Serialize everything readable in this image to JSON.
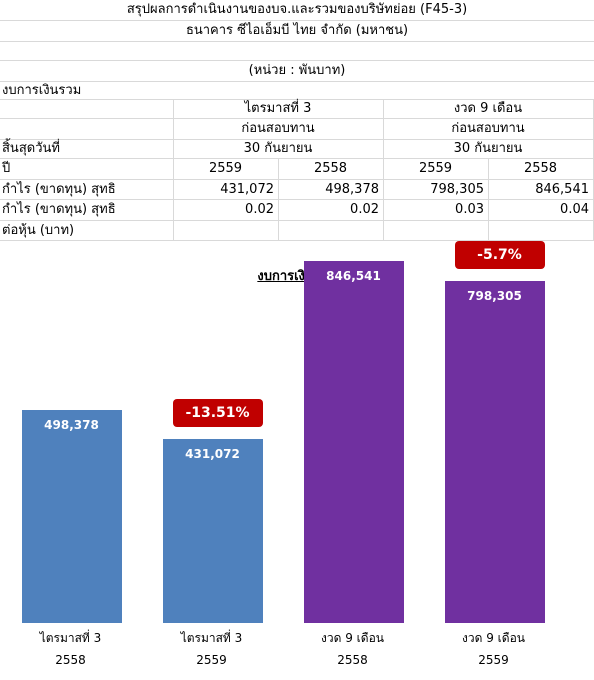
{
  "sheet": {
    "title_line1": "สรุปผลการดำเนินงานของบจ.และรวมของบริษัทย่อย (F45-3)",
    "title_line2": "ธนาคาร ซีไอเอ็มบี ไทย จำกัด (มหาชน)",
    "unit": "(หน่วย : พันบาท)",
    "section": "งบการเงินรวม",
    "period_q": "ไตรมาสที่ 3",
    "period_9m": "งวด 9 เดือน",
    "audit_q": "ก่อนสอบทาน",
    "audit_9m": "ก่อนสอบทาน",
    "ending_label": "สิ้นสุดวันที่",
    "ending_q": "30 กันยายน",
    "ending_9m": "30 กันยายน",
    "year_label": "ปี",
    "years": [
      "2559",
      "2558",
      "2559",
      "2558"
    ],
    "net_profit_label": "กำไร (ขาดทุน) สุทธิ",
    "net_profit_values": [
      "431,072",
      "498,378",
      "798,305",
      "846,541"
    ],
    "eps_label": "กำไร (ขาดทุน) สุทธิ",
    "eps_label2": "ต่อหุ้น (บาท)",
    "eps_values": [
      "0.02",
      "0.02",
      "0.03",
      "0.04"
    ]
  },
  "chart_data": {
    "type": "bar",
    "title": "งบการเงินรวม",
    "categories": [
      [
        "ไตรมาสที่ 3",
        "2558"
      ],
      [
        "ไตรมาสที่ 3",
        "2559"
      ],
      [
        "งวด 9 เดือน",
        "2558"
      ],
      [
        "งวด 9 เดือน",
        "2559"
      ]
    ],
    "values": [
      498378,
      431072,
      846541,
      798305
    ],
    "value_labels": [
      "498,378",
      "431,072",
      "846,541",
      "798,305"
    ],
    "bar_colors": [
      "#4f81bd",
      "#4f81bd",
      "#7030a0",
      "#7030a0"
    ],
    "change_labels": [
      "",
      "-13.51%",
      "",
      "-5.7%"
    ],
    "badge_color": "#c00000",
    "ylim": [
      0,
      1000000
    ],
    "grid": false
  }
}
